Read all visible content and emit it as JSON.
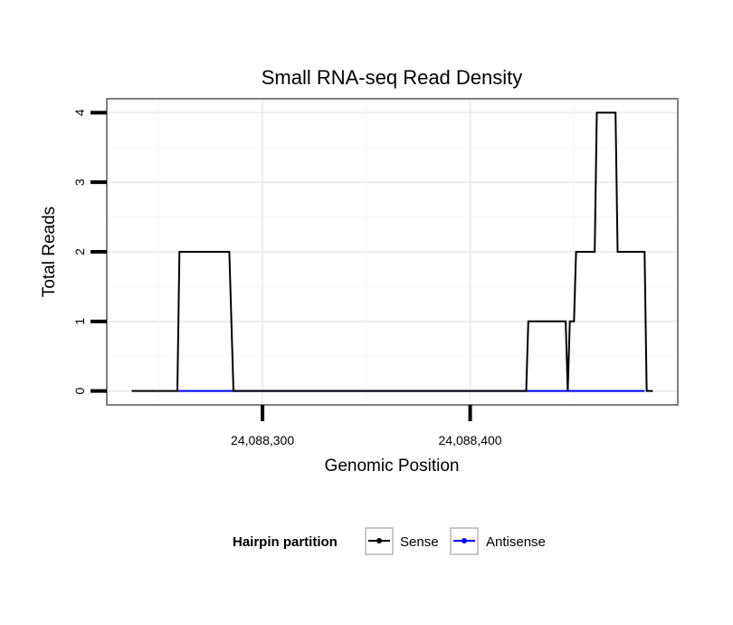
{
  "chart_data": {
    "type": "line",
    "title": "Small RNA-seq Read Density",
    "xlabel": "Genomic Position",
    "ylabel": "Total Reads",
    "xlim": [
      24088225,
      24088500
    ],
    "ylim": [
      -0.2,
      4.2
    ],
    "x_ticks": [
      24088300,
      24088400
    ],
    "x_tick_labels": [
      "24,088,300",
      "24,088,400"
    ],
    "y_ticks": [
      0,
      1,
      2,
      3,
      4
    ],
    "y_tick_labels": [
      "0",
      "1",
      "2",
      "3",
      "4"
    ],
    "grid": true,
    "legend": {
      "title": "Hairpin partition",
      "position": "bottom"
    },
    "series": [
      {
        "name": "Sense",
        "color": "#000000",
        "x": [
          24088237,
          24088259,
          24088260,
          24088284,
          24088286,
          24088427,
          24088428,
          24088446,
          24088447,
          24088448,
          24088450,
          24088451,
          24088460,
          24088461,
          24088470,
          24088471,
          24088484,
          24088485,
          24088488
        ],
        "y": [
          0,
          0,
          2,
          2,
          0,
          0,
          1,
          1,
          0,
          1,
          1,
          2,
          2,
          4,
          4,
          2,
          2,
          0,
          0
        ]
      },
      {
        "name": "Antisense",
        "color": "#0000ff",
        "x": [
          24088259,
          24088286,
          24088427,
          24088484
        ],
        "y": [
          0,
          0,
          0,
          0
        ]
      }
    ]
  }
}
